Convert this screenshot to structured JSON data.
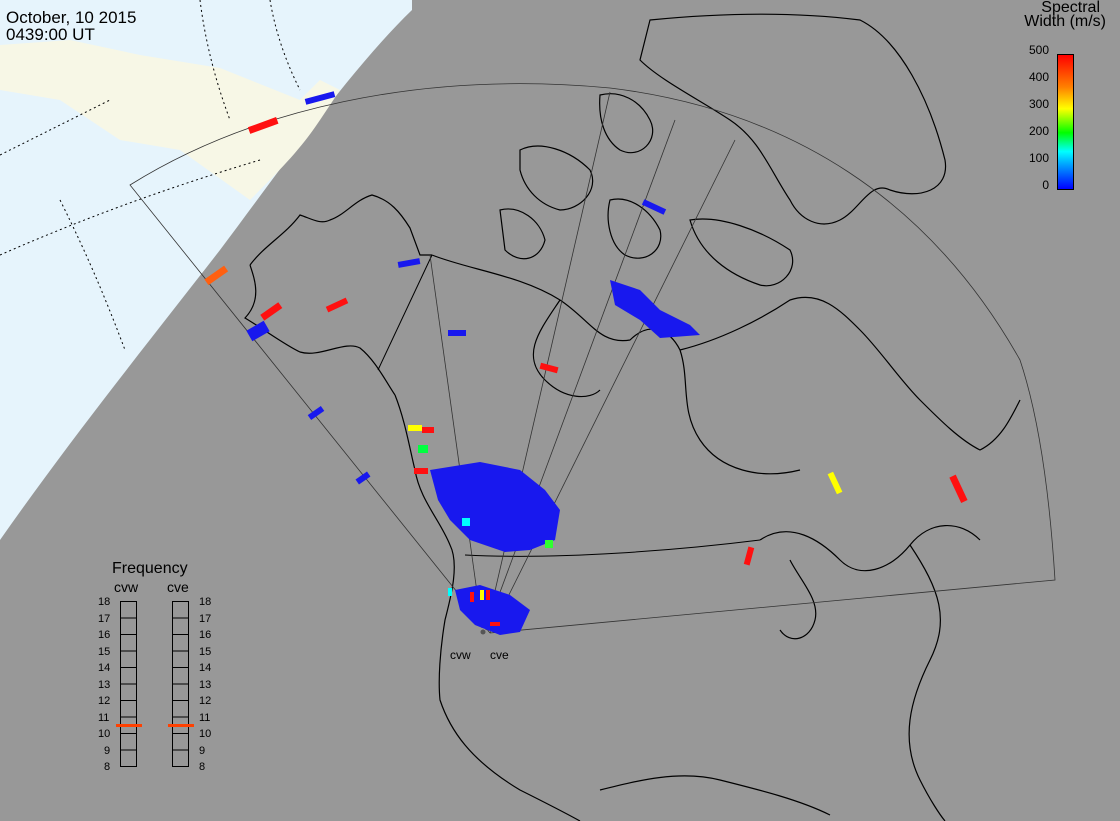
{
  "header": {
    "date": "October, 10 2015",
    "time": "0439:00 UT"
  },
  "colorbar": {
    "title_line1": "Spectral",
    "title_line2": "Width (m/s)",
    "ticks": [
      "500",
      "400",
      "300",
      "200",
      "100",
      "0"
    ],
    "min": 0,
    "max": 500
  },
  "frequency": {
    "title": "Frequency",
    "radars": [
      "cvw",
      "cve"
    ],
    "ticks": [
      "18",
      "17",
      "16",
      "15",
      "14",
      "13",
      "12",
      "11",
      "10",
      "9",
      "8"
    ],
    "cvw_value": 10.6,
    "cve_value": 10.6
  },
  "sites": {
    "cvw": "cvw",
    "cve": "cve"
  },
  "colors": {
    "ocean": "#989898",
    "daylight": "#e6f4fc",
    "daylight_land": "#f7f7e6",
    "low": "#1818ee",
    "high": "#ff1010"
  }
}
